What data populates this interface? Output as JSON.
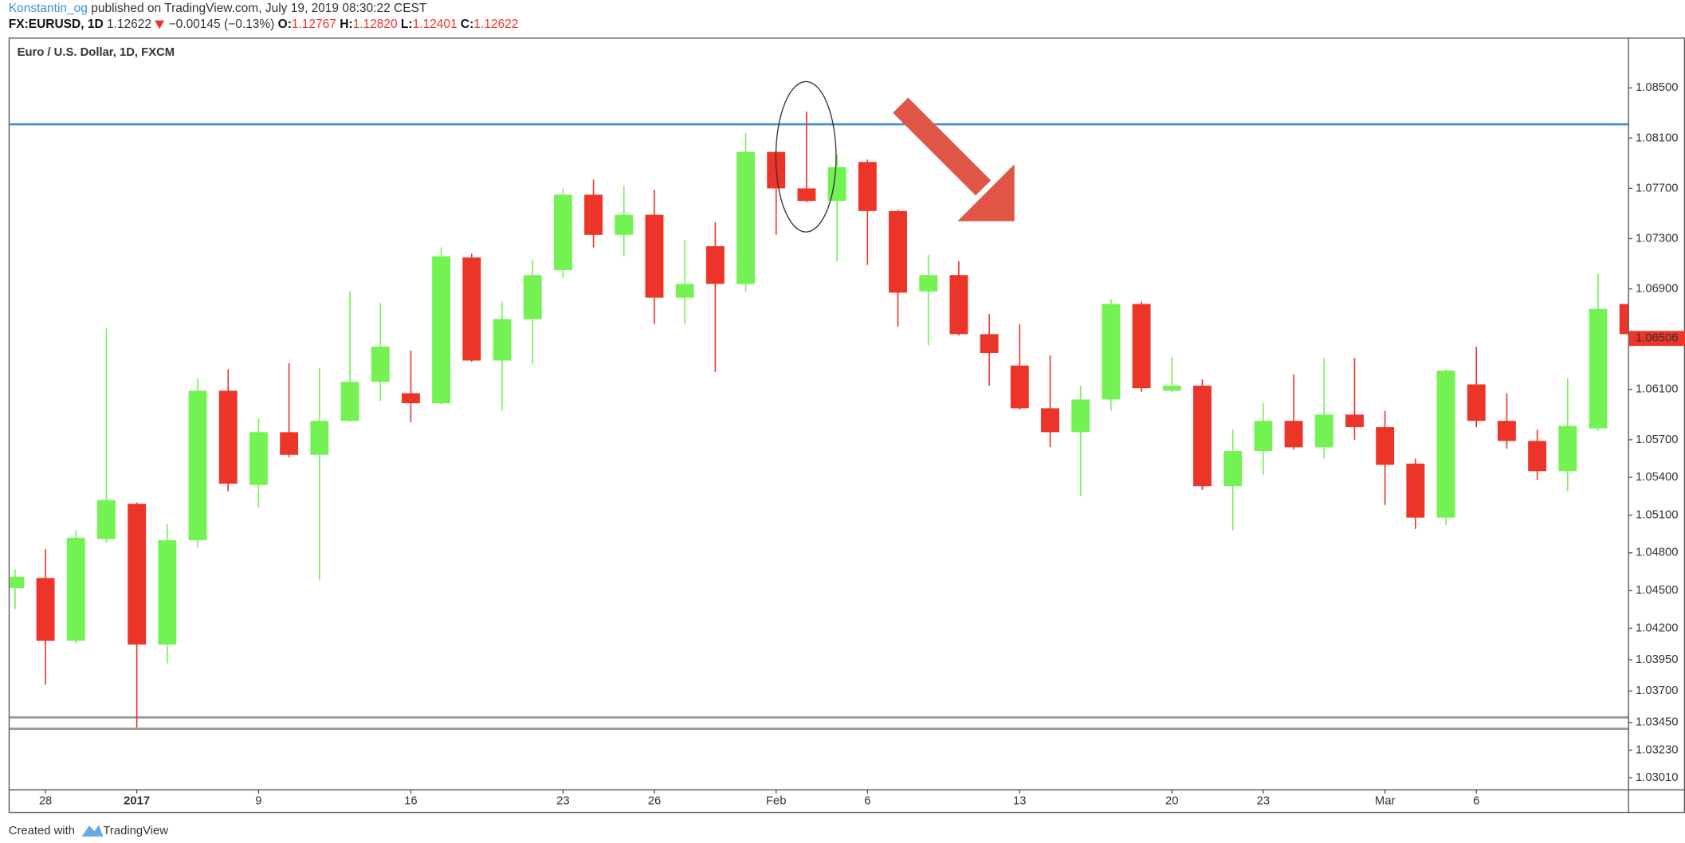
{
  "header": {
    "author": "Konstantin_og",
    "published": "published on TradingView.com, July 19, 2019 08:30:22 CEST",
    "symbol": "FX:EURUSD, 1D",
    "price": "1.12622",
    "change": "−0.00145 (−0.13%)",
    "open_label": "O:",
    "open": "1.12767",
    "high_label": "H:",
    "high": "1.12820",
    "low_label": "L:",
    "low": "1.12401",
    "close_label": "C:",
    "close": "1.12622"
  },
  "footer": {
    "text": "Created with",
    "brand": "TradingView"
  },
  "chart_data": {
    "type": "candlestick",
    "title": "Euro / U.S. Dollar, 1D, FXCM",
    "up_color": "#74f254",
    "down_color": "#ec3528",
    "categories": [
      null,
      "28",
      null,
      null,
      "2017",
      null,
      null,
      null,
      "9",
      null,
      null,
      null,
      null,
      "16",
      null,
      null,
      null,
      null,
      "23",
      null,
      null,
      "26",
      null,
      null,
      null,
      "Feb",
      null,
      null,
      "6",
      null,
      null,
      null,
      null,
      "13",
      null,
      null,
      null,
      null,
      "20",
      null,
      null,
      "23",
      null,
      null,
      null,
      "Mar",
      null,
      null,
      "6",
      null,
      null,
      null,
      null,
      null
    ],
    "open": [
      1.0452,
      1.046,
      1.041,
      1.0491,
      1.0519,
      1.0407,
      1.049,
      1.0609,
      1.0534,
      1.0576,
      1.0558,
      1.0585,
      1.0616,
      1.0607,
      1.0599,
      1.0715,
      1.0633,
      1.0666,
      1.0705,
      1.0765,
      1.0733,
      1.0749,
      1.0683,
      1.0724,
      1.0694,
      1.0799,
      1.077,
      1.076,
      1.0791,
      1.0752,
      1.0688,
      1.0701,
      1.0654,
      1.0629,
      1.0595,
      1.0576,
      1.0602,
      1.0678,
      1.0609,
      1.0613,
      1.0533,
      1.0561,
      1.0585,
      1.0564,
      1.059,
      1.058,
      1.0551,
      1.0508,
      1.0614,
      1.0585,
      1.0569,
      1.0545,
      1.0579,
      1.0678
    ],
    "high": [
      1.0467,
      1.0483,
      1.0498,
      1.0659,
      1.052,
      1.0503,
      1.0619,
      1.0626,
      1.0587,
      1.0631,
      1.0627,
      1.0688,
      1.0679,
      1.0641,
      1.0723,
      1.0718,
      1.068,
      1.0713,
      1.077,
      1.0777,
      1.0772,
      1.0769,
      1.0729,
      1.0743,
      1.0814,
      1.08,
      1.0831,
      1.0797,
      1.0793,
      1.0753,
      1.0717,
      1.0712,
      1.067,
      1.0662,
      1.0637,
      1.0613,
      1.0682,
      1.068,
      1.0636,
      1.0618,
      1.0578,
      1.0599,
      1.0622,
      1.0635,
      1.0635,
      1.0593,
      1.0555,
      1.0626,
      1.0644,
      1.0607,
      1.0578,
      1.0619,
      1.0702,
      1.068
    ],
    "low": [
      1.0435,
      1.0375,
      1.0408,
      1.0488,
      1.0341,
      1.0392,
      1.0484,
      1.0529,
      1.0516,
      1.0556,
      1.0458,
      1.0584,
      1.0601,
      1.0584,
      1.0598,
      1.0632,
      1.0593,
      1.063,
      1.0699,
      1.0723,
      1.0716,
      1.0662,
      1.0662,
      1.0624,
      1.0688,
      1.0733,
      1.0759,
      1.0712,
      1.0709,
      1.066,
      1.0645,
      1.0653,
      1.0613,
      1.0594,
      1.0564,
      1.0525,
      1.0593,
      1.0608,
      1.0608,
      1.053,
      1.0498,
      1.0542,
      1.0562,
      1.0555,
      1.057,
      1.0518,
      1.0499,
      1.0502,
      1.058,
      1.0563,
      1.0538,
      1.0529,
      1.0577,
      1.0653
    ],
    "close": [
      1.0461,
      1.041,
      1.0492,
      1.0522,
      1.0407,
      1.049,
      1.0609,
      1.0535,
      1.0576,
      1.0558,
      1.0585,
      1.0616,
      1.0644,
      1.0599,
      1.0716,
      1.0633,
      1.0666,
      1.0701,
      1.0765,
      1.0733,
      1.0749,
      1.0683,
      1.0694,
      1.0694,
      1.0799,
      1.077,
      1.076,
      1.0787,
      1.0752,
      1.0687,
      1.0701,
      1.0654,
      1.0639,
      1.0595,
      1.0576,
      1.0602,
      1.0678,
      1.0611,
      1.0613,
      1.0533,
      1.0561,
      1.0585,
      1.0564,
      1.059,
      1.058,
      1.055,
      1.0508,
      1.0625,
      1.0585,
      1.0569,
      1.0545,
      1.0581,
      1.0674,
      1.0654
    ],
    "last_price": 1.06506,
    "hlines": [
      {
        "value": 1.0821,
        "color": "#3d8fd6"
      },
      {
        "value": 1.0349,
        "color": "#999999"
      },
      {
        "value": 1.034,
        "color": "#999999"
      }
    ],
    "ylim": [
      1.0273,
      1.089
    ],
    "yticks": [
      {
        "value": 1.085,
        "label": "1.08500"
      },
      {
        "value": 1.081,
        "label": "1.08100"
      },
      {
        "value": 1.077,
        "label": "1.07700"
      },
      {
        "value": 1.073,
        "label": "1.07300"
      },
      {
        "value": 1.069,
        "label": "1.06900"
      },
      {
        "value": 1.061,
        "label": "1.06100"
      },
      {
        "value": 1.057,
        "label": "1.05700"
      },
      {
        "value": 1.054,
        "label": "1.05400"
      },
      {
        "value": 1.051,
        "label": "1.05100"
      },
      {
        "value": 1.048,
        "label": "1.04800"
      },
      {
        "value": 1.045,
        "label": "1.04500"
      },
      {
        "value": 1.042,
        "label": "1.04200"
      },
      {
        "value": 1.0395,
        "label": "1.03950"
      },
      {
        "value": 1.037,
        "label": "1.03700"
      },
      {
        "value": 1.0345,
        "label": "1.03450"
      },
      {
        "value": 1.0323,
        "label": "1.03230"
      },
      {
        "value": 1.0301,
        "label": "1.03010"
      }
    ],
    "grid": false
  }
}
